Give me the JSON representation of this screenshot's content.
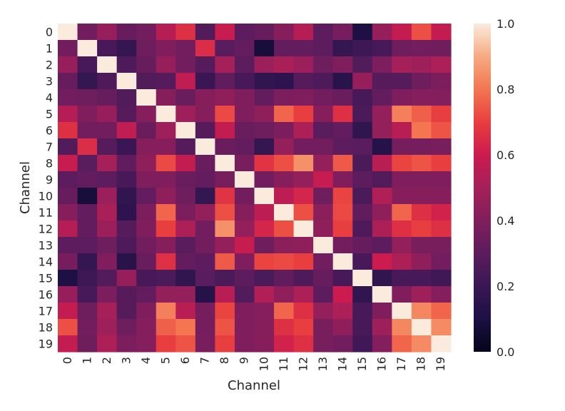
{
  "chart_data": {
    "type": "heatmap",
    "title": "",
    "xlabel": "Channel",
    "ylabel": "Channel",
    "x_categories": [
      "0",
      "1",
      "2",
      "3",
      "4",
      "5",
      "6",
      "7",
      "8",
      "9",
      "10",
      "11",
      "12",
      "13",
      "14",
      "15",
      "16",
      "17",
      "18",
      "19"
    ],
    "y_categories": [
      "0",
      "1",
      "2",
      "3",
      "4",
      "5",
      "6",
      "7",
      "8",
      "9",
      "10",
      "11",
      "12",
      "13",
      "14",
      "15",
      "16",
      "17",
      "18",
      "19"
    ],
    "value_range": [
      0.0,
      1.0
    ],
    "colorbar_ticks": [
      "0.0",
      "0.2",
      "0.4",
      "0.6",
      "0.8",
      "1.0"
    ],
    "colormap": "rocket",
    "colors": {
      "low": "#03051a",
      "mid": "#cb1b4f",
      "high": "#faebdd"
    },
    "values": [
      [
        1.0,
        0.36,
        0.46,
        0.33,
        0.36,
        0.54,
        0.66,
        0.27,
        0.59,
        0.3,
        0.33,
        0.42,
        0.54,
        0.3,
        0.37,
        0.1,
        0.46,
        0.58,
        0.73,
        0.58
      ],
      [
        0.36,
        1.0,
        0.24,
        0.18,
        0.35,
        0.4,
        0.36,
        0.65,
        0.29,
        0.32,
        0.08,
        0.32,
        0.32,
        0.3,
        0.18,
        0.21,
        0.24,
        0.35,
        0.36,
        0.35
      ],
      [
        0.46,
        0.24,
        1.0,
        0.26,
        0.33,
        0.46,
        0.36,
        0.28,
        0.5,
        0.3,
        0.47,
        0.51,
        0.47,
        0.35,
        0.4,
        0.27,
        0.39,
        0.5,
        0.48,
        0.52
      ],
      [
        0.33,
        0.18,
        0.26,
        1.0,
        0.27,
        0.28,
        0.57,
        0.2,
        0.31,
        0.24,
        0.17,
        0.16,
        0.28,
        0.26,
        0.14,
        0.46,
        0.28,
        0.28,
        0.35,
        0.39
      ],
      [
        0.36,
        0.35,
        0.33,
        0.27,
        1.0,
        0.42,
        0.34,
        0.42,
        0.44,
        0.4,
        0.32,
        0.39,
        0.4,
        0.36,
        0.34,
        0.24,
        0.32,
        0.4,
        0.41,
        0.41
      ],
      [
        0.54,
        0.4,
        0.46,
        0.28,
        0.42,
        1.0,
        0.48,
        0.42,
        0.72,
        0.4,
        0.44,
        0.77,
        0.7,
        0.42,
        0.66,
        0.25,
        0.45,
        0.82,
        0.76,
        0.7
      ],
      [
        0.66,
        0.36,
        0.36,
        0.57,
        0.34,
        0.48,
        1.0,
        0.28,
        0.58,
        0.34,
        0.35,
        0.39,
        0.52,
        0.29,
        0.32,
        0.17,
        0.45,
        0.55,
        0.8,
        0.74
      ],
      [
        0.27,
        0.65,
        0.28,
        0.2,
        0.42,
        0.42,
        0.28,
        1.0,
        0.34,
        0.32,
        0.18,
        0.45,
        0.36,
        0.36,
        0.3,
        0.29,
        0.13,
        0.37,
        0.37,
        0.38
      ],
      [
        0.59,
        0.29,
        0.5,
        0.31,
        0.44,
        0.72,
        0.58,
        0.34,
        1.0,
        0.38,
        0.67,
        0.73,
        0.85,
        0.45,
        0.75,
        0.25,
        0.55,
        0.71,
        0.74,
        0.7
      ],
      [
        0.3,
        0.32,
        0.3,
        0.24,
        0.4,
        0.4,
        0.34,
        0.32,
        0.38,
        1.0,
        0.36,
        0.42,
        0.45,
        0.59,
        0.4,
        0.3,
        0.27,
        0.4,
        0.4,
        0.4
      ],
      [
        0.33,
        0.08,
        0.47,
        0.17,
        0.32,
        0.44,
        0.35,
        0.18,
        0.67,
        0.36,
        1.0,
        0.56,
        0.63,
        0.35,
        0.71,
        0.25,
        0.53,
        0.42,
        0.42,
        0.42
      ],
      [
        0.42,
        0.32,
        0.51,
        0.16,
        0.39,
        0.77,
        0.39,
        0.45,
        0.73,
        0.42,
        0.56,
        1.0,
        0.73,
        0.43,
        0.72,
        0.31,
        0.44,
        0.77,
        0.66,
        0.62
      ],
      [
        0.54,
        0.32,
        0.47,
        0.28,
        0.4,
        0.7,
        0.52,
        0.36,
        0.85,
        0.45,
        0.63,
        0.73,
        1.0,
        0.44,
        0.7,
        0.26,
        0.52,
        0.66,
        0.7,
        0.66
      ],
      [
        0.3,
        0.3,
        0.35,
        0.26,
        0.36,
        0.42,
        0.29,
        0.36,
        0.45,
        0.59,
        0.35,
        0.43,
        0.44,
        1.0,
        0.36,
        0.33,
        0.3,
        0.45,
        0.38,
        0.38
      ],
      [
        0.37,
        0.18,
        0.4,
        0.14,
        0.34,
        0.66,
        0.32,
        0.3,
        0.75,
        0.4,
        0.71,
        0.72,
        0.7,
        0.36,
        1.0,
        0.24,
        0.6,
        0.52,
        0.44,
        0.36
      ],
      [
        0.1,
        0.21,
        0.27,
        0.46,
        0.24,
        0.25,
        0.17,
        0.29,
        0.25,
        0.3,
        0.25,
        0.31,
        0.26,
        0.33,
        0.24,
        1.0,
        0.17,
        0.24,
        0.24,
        0.22
      ],
      [
        0.46,
        0.24,
        0.39,
        0.28,
        0.32,
        0.45,
        0.45,
        0.13,
        0.55,
        0.27,
        0.53,
        0.44,
        0.52,
        0.3,
        0.6,
        0.17,
        1.0,
        0.4,
        0.48,
        0.41
      ],
      [
        0.58,
        0.35,
        0.5,
        0.28,
        0.4,
        0.82,
        0.55,
        0.37,
        0.71,
        0.4,
        0.42,
        0.77,
        0.66,
        0.45,
        0.52,
        0.24,
        0.4,
        1.0,
        0.83,
        0.77
      ],
      [
        0.73,
        0.36,
        0.48,
        0.35,
        0.41,
        0.76,
        0.8,
        0.37,
        0.74,
        0.4,
        0.42,
        0.66,
        0.7,
        0.38,
        0.44,
        0.24,
        0.48,
        0.83,
        1.0,
        0.84
      ],
      [
        0.58,
        0.35,
        0.52,
        0.39,
        0.41,
        0.7,
        0.74,
        0.38,
        0.7,
        0.4,
        0.42,
        0.62,
        0.66,
        0.38,
        0.36,
        0.22,
        0.41,
        0.77,
        0.84,
        1.0
      ]
    ]
  }
}
